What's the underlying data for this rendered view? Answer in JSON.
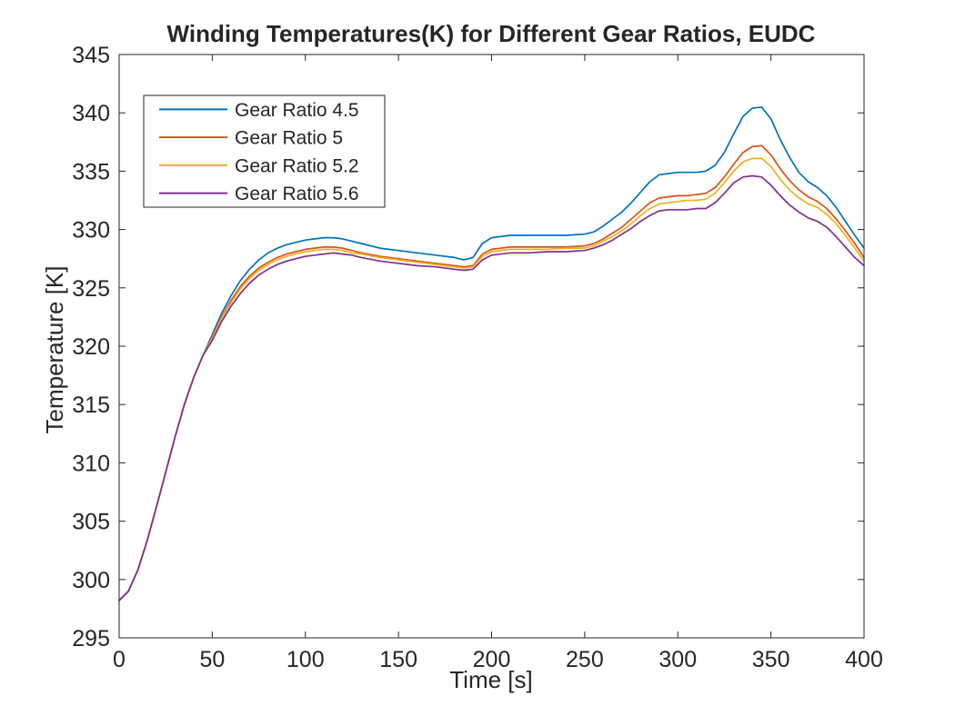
{
  "figure": {
    "background": "#ffffff",
    "axis_color": "#262626",
    "text_color": "#262626"
  },
  "chart_data": {
    "type": "line",
    "title": "Winding Temperatures(K) for Different Gear Ratios, EUDC",
    "xlabel": "Time [s]",
    "ylabel": "Temperature [K]",
    "xlim": [
      0,
      400
    ],
    "ylim": [
      295,
      345
    ],
    "xticks": [
      0,
      50,
      100,
      150,
      200,
      250,
      300,
      350,
      400
    ],
    "yticks": [
      295,
      300,
      305,
      310,
      315,
      320,
      325,
      330,
      335,
      340,
      345
    ],
    "grid": false,
    "legend": {
      "position": "top-left-inside",
      "border": true,
      "background": "#ffffff"
    },
    "x": [
      0,
      5,
      10,
      15,
      20,
      25,
      30,
      35,
      40,
      45,
      50,
      55,
      60,
      65,
      70,
      75,
      80,
      85,
      90,
      95,
      100,
      105,
      110,
      115,
      120,
      125,
      130,
      140,
      150,
      160,
      170,
      180,
      185,
      190,
      195,
      200,
      210,
      220,
      230,
      240,
      250,
      255,
      260,
      265,
      270,
      275,
      280,
      285,
      290,
      295,
      300,
      305,
      310,
      315,
      320,
      325,
      330,
      335,
      340,
      345,
      350,
      355,
      360,
      365,
      370,
      375,
      380,
      385,
      390,
      395,
      400
    ],
    "series": [
      {
        "name": "Gear Ratio 4.5",
        "color": "#0072BD",
        "values": [
          298.2,
          299.0,
          300.8,
          303.3,
          306.2,
          309.2,
          312.2,
          315.0,
          317.3,
          319.2,
          321.0,
          322.8,
          324.3,
          325.6,
          326.6,
          327.4,
          328.0,
          328.4,
          328.7,
          328.9,
          329.1,
          329.2,
          329.3,
          329.3,
          329.2,
          329.0,
          328.8,
          328.4,
          328.2,
          328.0,
          327.8,
          327.6,
          327.4,
          327.6,
          328.8,
          329.3,
          329.5,
          329.5,
          329.5,
          329.5,
          329.6,
          329.8,
          330.3,
          330.9,
          331.5,
          332.3,
          333.2,
          334.1,
          334.7,
          334.8,
          334.9,
          334.9,
          334.9,
          335.0,
          335.5,
          336.6,
          338.2,
          339.7,
          340.4,
          340.5,
          339.5,
          337.7,
          336.2,
          334.9,
          334.1,
          333.6,
          332.9,
          331.9,
          330.7,
          329.5,
          328.4
        ]
      },
      {
        "name": "Gear Ratio 5",
        "color": "#D95319",
        "values": [
          298.2,
          299.0,
          300.8,
          303.3,
          306.2,
          309.2,
          312.2,
          315.0,
          317.3,
          319.2,
          320.8,
          322.5,
          323.9,
          325.1,
          326.0,
          326.7,
          327.2,
          327.6,
          327.9,
          328.1,
          328.3,
          328.4,
          328.5,
          328.5,
          328.4,
          328.2,
          328.0,
          327.7,
          327.5,
          327.3,
          327.1,
          326.9,
          326.8,
          326.9,
          327.9,
          328.3,
          328.5,
          328.5,
          328.5,
          328.5,
          328.6,
          328.8,
          329.2,
          329.7,
          330.2,
          330.9,
          331.6,
          332.3,
          332.7,
          332.8,
          332.9,
          332.9,
          333.0,
          333.1,
          333.6,
          334.5,
          335.6,
          336.6,
          337.1,
          337.2,
          336.4,
          335.2,
          334.2,
          333.4,
          332.8,
          332.4,
          331.8,
          330.9,
          329.9,
          328.8,
          327.6
        ]
      },
      {
        "name": "Gear Ratio 5.2",
        "color": "#EDB120",
        "values": [
          298.2,
          299.0,
          300.8,
          303.3,
          306.2,
          309.2,
          312.2,
          315.0,
          317.3,
          319.2,
          320.7,
          322.4,
          323.7,
          324.9,
          325.8,
          326.5,
          327.0,
          327.4,
          327.7,
          327.9,
          328.1,
          328.2,
          328.3,
          328.3,
          328.2,
          328.0,
          327.9,
          327.6,
          327.4,
          327.2,
          327.0,
          326.8,
          326.7,
          326.8,
          327.7,
          328.1,
          328.3,
          328.3,
          328.3,
          328.4,
          328.4,
          328.6,
          329.0,
          329.4,
          329.9,
          330.5,
          331.2,
          331.8,
          332.2,
          332.3,
          332.4,
          332.5,
          332.5,
          332.6,
          333.1,
          334.0,
          335.0,
          335.8,
          336.1,
          336.1,
          335.4,
          334.3,
          333.4,
          332.7,
          332.2,
          331.9,
          331.3,
          330.5,
          329.5,
          328.4,
          327.3
        ]
      },
      {
        "name": "Gear Ratio 5.6",
        "color": "#7E2F8E",
        "values": [
          298.2,
          299.0,
          300.8,
          303.3,
          306.2,
          309.2,
          312.2,
          315.0,
          317.3,
          319.2,
          320.5,
          322.1,
          323.4,
          324.5,
          325.4,
          326.1,
          326.6,
          327.0,
          327.3,
          327.5,
          327.7,
          327.8,
          327.9,
          328.0,
          327.9,
          327.8,
          327.6,
          327.3,
          327.1,
          326.9,
          326.8,
          326.6,
          326.5,
          326.6,
          327.4,
          327.8,
          328.0,
          328.0,
          328.1,
          328.1,
          328.2,
          328.4,
          328.7,
          329.1,
          329.6,
          330.1,
          330.7,
          331.2,
          331.6,
          331.7,
          331.7,
          331.7,
          331.8,
          331.8,
          332.3,
          333.1,
          334.0,
          334.5,
          334.6,
          334.5,
          333.8,
          332.9,
          332.1,
          331.5,
          331.0,
          330.7,
          330.2,
          329.4,
          328.5,
          327.6,
          326.9
        ]
      }
    ]
  }
}
